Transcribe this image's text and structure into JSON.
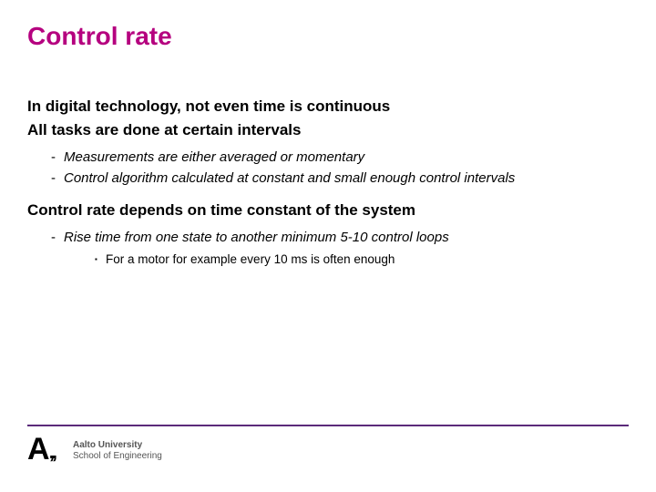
{
  "colors": {
    "title": "#b5007f",
    "text": "#000000",
    "footer_line": "#5b2a7a",
    "logo_text": "#555555",
    "background": "#ffffff"
  },
  "title": "Control rate",
  "points": [
    {
      "text": "In digital technology, not even time is continuous",
      "subs": []
    },
    {
      "text": "All tasks are done at certain intervals",
      "subs": [
        {
          "text": "Measurements are either averaged or momentary",
          "subsubs": []
        },
        {
          "text": "Control algorithm calculated at constant and small enough control intervals",
          "subsubs": []
        }
      ]
    },
    {
      "text": "Control rate depends on time constant of the system",
      "subs": [
        {
          "text": "Rise time from one state to another minimum 5-10 control loops",
          "subsubs": [
            {
              "text": "For a motor for example every 10 ms is often enough"
            }
          ]
        }
      ]
    }
  ],
  "footer": {
    "institution": "Aalto University",
    "school": "School of Engineering"
  }
}
